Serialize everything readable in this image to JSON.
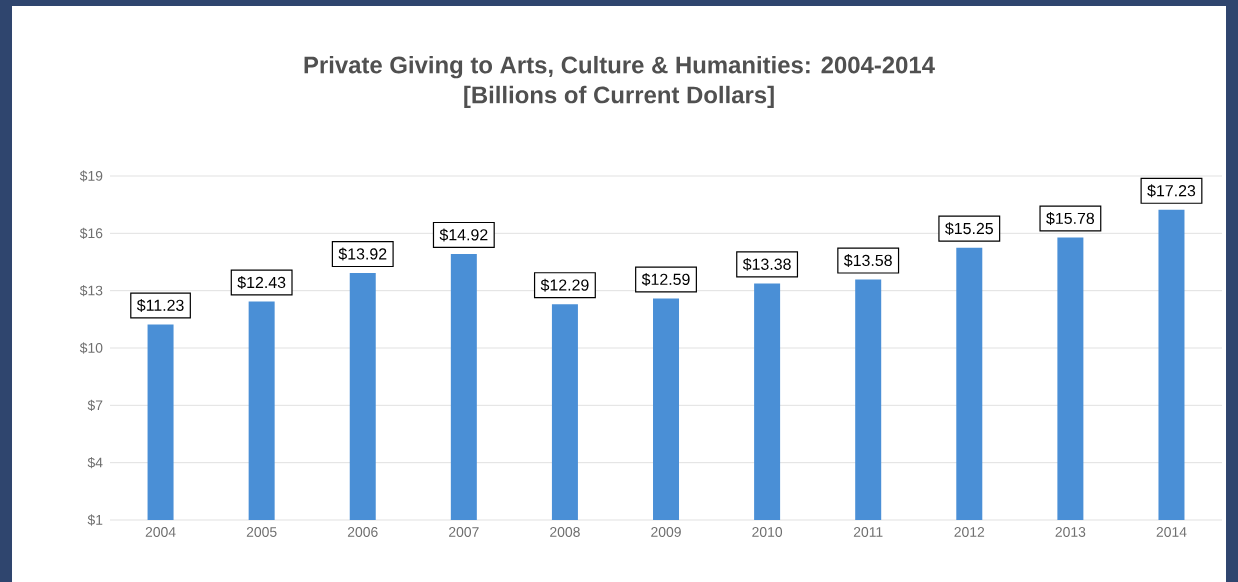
{
  "chart_data": {
    "type": "bar",
    "title": "Private Giving to Arts, Culture & Humanities: 2004-2014",
    "subtitle": "[Billions of Current Dollars]",
    "categories": [
      "2004",
      "2005",
      "2006",
      "2007",
      "2008",
      "2009",
      "2010",
      "2011",
      "2012",
      "2013",
      "2014"
    ],
    "values": [
      11.23,
      12.43,
      13.92,
      14.92,
      12.29,
      12.59,
      13.38,
      13.58,
      15.25,
      15.78,
      17.23
    ],
    "value_labels": [
      "$11.23",
      "$12.43",
      "$13.92",
      "$14.92",
      "$12.29",
      "$12.59",
      "$13.38",
      "$13.58",
      "$15.25",
      "$15.78",
      "$17.23"
    ],
    "color": "#4a8fd6",
    "ylim": [
      1,
      19
    ],
    "yticks": [
      {
        "value": 1,
        "label": "$1"
      },
      {
        "value": 4,
        "label": "$4"
      },
      {
        "value": 7,
        "label": "$7"
      },
      {
        "value": 10,
        "label": "$10"
      },
      {
        "value": 13,
        "label": "$13"
      },
      {
        "value": 16,
        "label": "$16"
      },
      {
        "value": 19,
        "label": "$19"
      }
    ],
    "grid": "y"
  }
}
